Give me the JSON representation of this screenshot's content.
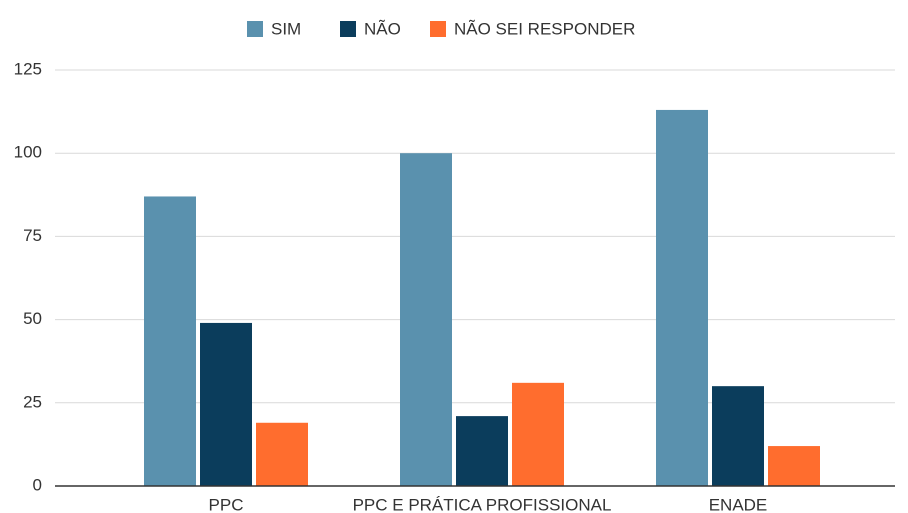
{
  "chart_data": {
    "type": "bar",
    "categories": [
      "PPC",
      "PPC E PRÁTICA PROFISSIONAL",
      "ENADE"
    ],
    "series": [
      {
        "name": "SIM",
        "color": "#5a91ae",
        "values": [
          87,
          100,
          113
        ]
      },
      {
        "name": "NÃO",
        "color": "#0b3d5c",
        "values": [
          49,
          21,
          30
        ]
      },
      {
        "name": "NÃO SEI RESPONDER",
        "color": "#ff6d2e",
        "values": [
          19,
          31,
          12
        ]
      }
    ],
    "ylim": [
      0,
      125
    ],
    "yticks": [
      0,
      25,
      50,
      75,
      100,
      125
    ],
    "grid": true,
    "legend": "top"
  }
}
